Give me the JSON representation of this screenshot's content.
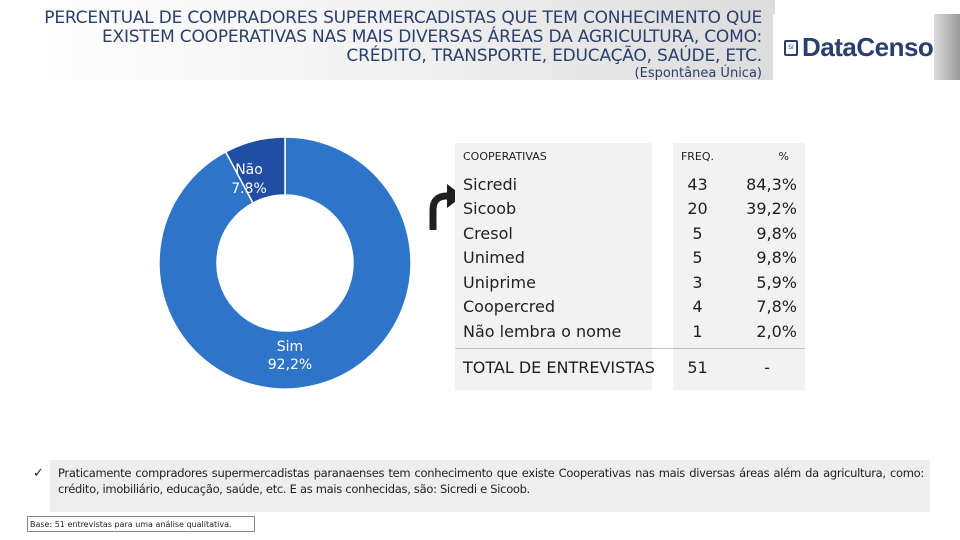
{
  "header": {
    "title": "PERCENTUAL DE COMPRADORES SUPERMERCADISTAS QUE TEM CONHECIMENTO QUE EXISTEM COOPERATIVAS NAS MAIS DIVERSAS ÁREAS DA AGRICULTURA, COMO: CRÉDITO, TRANSPORTE, EDUCAÇÃO, SAÚDE, ETC.",
    "subtitle": "(Espontânea Única)"
  },
  "brand": {
    "name": "DataCenso",
    "mark": "SI"
  },
  "colors": {
    "sim": "#2e75c9",
    "nao": "#1f4ea3",
    "text": "#2a3f6b"
  },
  "chart_data": {
    "type": "pie",
    "style": "donut",
    "title": "",
    "slices": [
      {
        "name": "Sim",
        "value": 92.2,
        "label": "92,2%"
      },
      {
        "name": "Não",
        "value": 7.8,
        "label": "7.8%"
      }
    ]
  },
  "table": {
    "headers": {
      "name": "COOPERATIVAS",
      "freq": "FREQ.",
      "pct": "%"
    },
    "rows": [
      {
        "name": "Sicredi",
        "freq": "43",
        "pct": "84,3%"
      },
      {
        "name": "Sicoob",
        "freq": "20",
        "pct": "39,2%"
      },
      {
        "name": "Cresol",
        "freq": "5",
        "pct": "9,8%"
      },
      {
        "name": "Unimed",
        "freq": "5",
        "pct": "9,8%"
      },
      {
        "name": "Uniprime",
        "freq": "3",
        "pct": "5,9%"
      },
      {
        "name": "Coopercred",
        "freq": "4",
        "pct": "7,8%"
      },
      {
        "name": "Não lembra o nome",
        "freq": "1",
        "pct": "2,0%"
      }
    ],
    "total": {
      "name": "TOTAL DE ENTREVISTAS",
      "freq": "51",
      "pct": "-"
    }
  },
  "note": {
    "bullet": "✓",
    "text": "Praticamente compradores supermercadistas paranaenses tem conhecimento que existe Cooperativas nas mais diversas áreas além da agricultura, como: crédito, imobiliário, educação, saúde, etc. E as mais conhecidas, são: Sicredi e Sicoob."
  },
  "footer": {
    "base": "Base: 51 entrevistas para uma análise qualitativa."
  }
}
